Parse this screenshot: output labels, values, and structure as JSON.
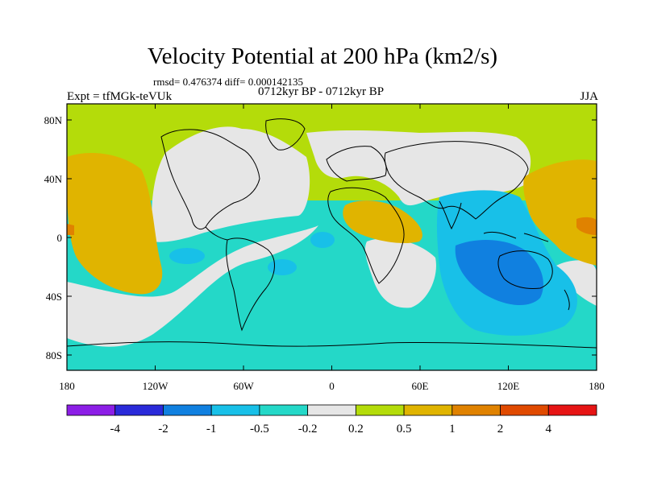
{
  "title": "Velocity Potential at 200 hPa (km2/s)",
  "stats_line": "rmsd= 0.476374 diff= 0.000142135",
  "left_label": "Expt = tfMGk-teVUk",
  "center_label": "0712kyr BP - 0712kyr BP",
  "right_label": "JJA",
  "lat_ticks": [
    "80N",
    "40N",
    "0",
    "40S",
    "80S"
  ],
  "lon_ticks": [
    "180",
    "120W",
    "60W",
    "0",
    "60E",
    "120E",
    "180"
  ],
  "colorbar": {
    "labels": [
      "-4",
      "-2",
      "-1",
      "-0.5",
      "-0.2",
      "0.2",
      "0.5",
      "1",
      "2",
      "4"
    ],
    "colors": [
      "#8c1ee6",
      "#2a2ad9",
      "#1080e0",
      "#18c0e8",
      "#24d8c8",
      "#e6e6e6",
      "#b4dc0a",
      "#e0b400",
      "#e08200",
      "#e04a00",
      "#e61414"
    ]
  }
}
